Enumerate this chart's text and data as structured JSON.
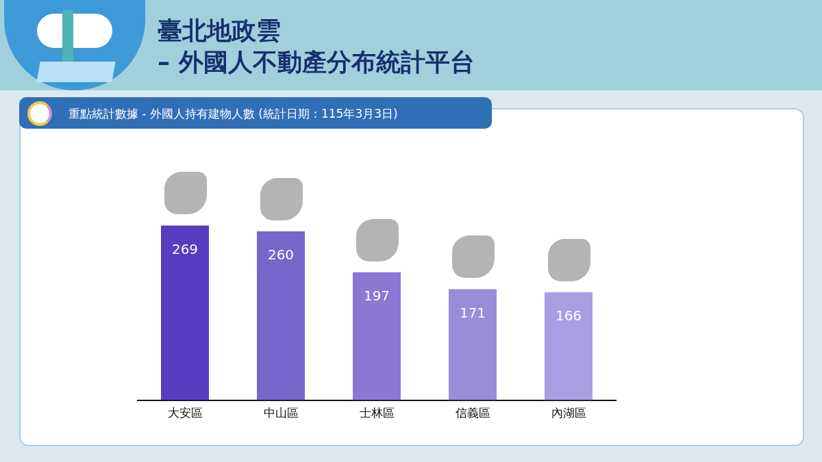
{
  "chart_data": {
    "type": "bar",
    "title": "臺北地政雲\n– 外國人不動產分布統計平台",
    "subtitle": "重點統計數據 - 外國人持有建物人數 (統計日期：115年3月3日)",
    "categories": [
      "大安區",
      "中山區",
      "士林區",
      "信義區",
      "內湖區"
    ],
    "values": [
      269,
      260,
      197,
      171,
      166
    ],
    "colors": [
      "#563cc0",
      "#7865cc",
      "#8a78d3",
      "#9b8cda",
      "#aa9de2"
    ],
    "data_labels": true,
    "grid": false,
    "legend": false,
    "tick_labels": "x"
  }
}
